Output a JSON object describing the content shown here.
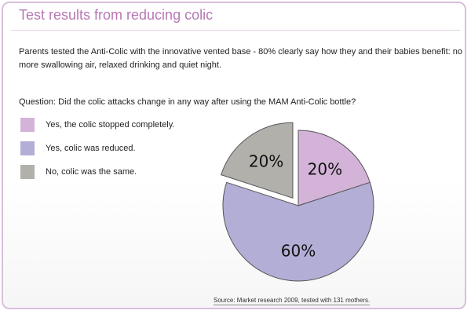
{
  "title": "Test results from reducing colic",
  "intro": "Parents tested the Anti-Colic with the innovative vented base - 80% clearly say how they and their babies benefit: no more swallowing air, relaxed drinking and quiet night.",
  "question": "Question: Did the colic attacks change in any way after using the MAM Anti-Colic bottle?",
  "source": "Source: Market research 2009, tested with 131 mothers.",
  "chart_data": {
    "type": "pie",
    "title": "",
    "legend_placement": "left",
    "slices": [
      {
        "label": "Yes, the colic stopped completely.",
        "value": 20,
        "value_label": "20%",
        "color": "#d4b3d8",
        "exploded": false
      },
      {
        "label": "Yes, colic was reduced.",
        "value": 60,
        "value_label": "60%",
        "color": "#b3aed6",
        "exploded": false
      },
      {
        "label": "No, colic was the same.",
        "value": 20,
        "value_label": "20%",
        "color": "#b2b0ab",
        "exploded": true
      }
    ]
  }
}
